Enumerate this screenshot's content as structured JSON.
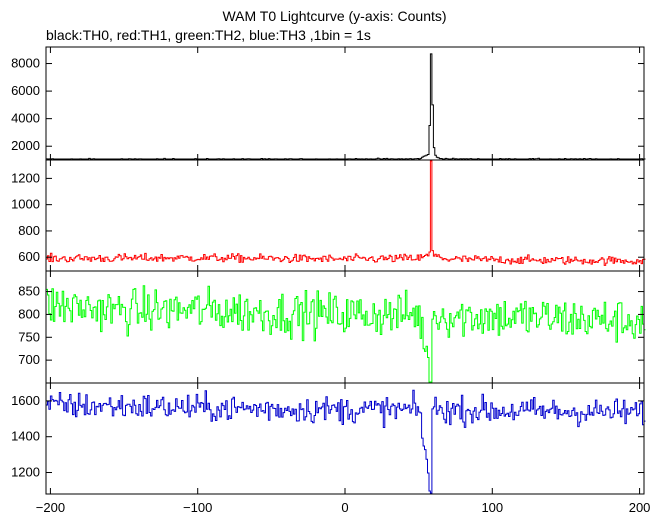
{
  "chart_data": {
    "type": "line",
    "title": "WAM T0 Lightcurve (y-axis: Counts)",
    "subtitle": "black:TH0, red:TH1, green:TH2, blue:TH3 ,1bin = 1s",
    "x_range": [
      -203,
      203
    ],
    "x_ticks": [
      -200,
      -100,
      0,
      100,
      200
    ],
    "x_tick_labels": [
      "−200",
      "−100",
      "0",
      "100",
      "200"
    ],
    "grid": false,
    "shared_x_axis": true,
    "series": [
      {
        "color": "#000000",
        "ylim": [
          1000,
          9200
        ],
        "y_ticks": [
          2000,
          4000,
          6000,
          8000
        ],
        "baseline": 1050,
        "noise": 28,
        "points": [
          [
            -203,
            1050
          ],
          [
            -20,
            1050
          ],
          [
            50,
            1080
          ],
          [
            56,
            1400
          ],
          [
            57,
            3500
          ],
          [
            58,
            8700
          ],
          [
            59,
            5000
          ],
          [
            60,
            1900
          ],
          [
            61,
            1350
          ],
          [
            62,
            1200
          ],
          [
            65,
            1100
          ],
          [
            75,
            1060
          ],
          [
            203,
            1050
          ]
        ]
      },
      {
        "color": "#ff0000",
        "ylim": [
          495,
          1340
        ],
        "y_ticks": [
          600,
          800,
          1000,
          1200
        ],
        "baseline": 590,
        "noise": 16,
        "points": [
          [
            -203,
            590
          ],
          [
            -100,
            595
          ],
          [
            0,
            585
          ],
          [
            50,
            592
          ],
          [
            56,
            610
          ],
          [
            57,
            640
          ],
          [
            58,
            1340
          ],
          [
            59,
            650
          ],
          [
            60,
            610
          ],
          [
            70,
            585
          ],
          [
            120,
            578
          ],
          [
            203,
            572
          ]
        ]
      },
      {
        "color": "#00ff00",
        "ylim": [
          650,
          895
        ],
        "y_ticks": [
          700,
          750,
          800,
          850
        ],
        "baseline": 805,
        "noise": 24,
        "points": [
          [
            -203,
            820
          ],
          [
            -150,
            808
          ],
          [
            -100,
            810
          ],
          [
            -50,
            803
          ],
          [
            0,
            800
          ],
          [
            50,
            800
          ],
          [
            58,
            650
          ],
          [
            59,
            798
          ],
          [
            100,
            795
          ],
          [
            150,
            790
          ],
          [
            203,
            785
          ]
        ]
      },
      {
        "color": "#0000cc",
        "ylim": [
          1080,
          1700
        ],
        "y_ticks": [
          1200,
          1400,
          1600
        ],
        "baseline": 1560,
        "noise": 38,
        "points": [
          [
            -203,
            1575
          ],
          [
            -150,
            1570
          ],
          [
            -100,
            1560
          ],
          [
            -50,
            1555
          ],
          [
            0,
            1550
          ],
          [
            50,
            1550
          ],
          [
            58,
            1080
          ],
          [
            59,
            1550
          ],
          [
            100,
            1545
          ],
          [
            150,
            1540
          ],
          [
            203,
            1535
          ]
        ]
      }
    ]
  }
}
